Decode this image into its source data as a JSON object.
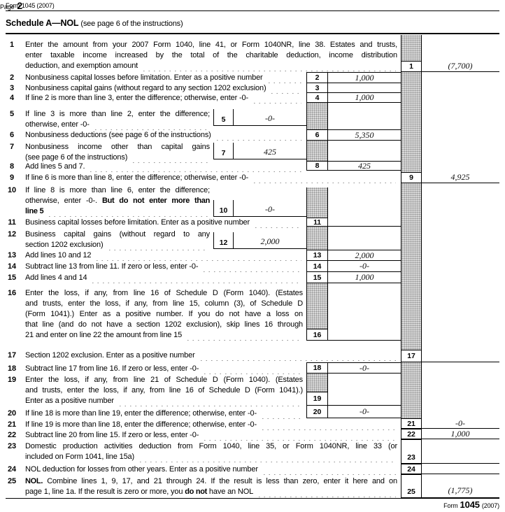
{
  "header": {
    "form_label": "Form 1045 (2007)",
    "page_label": "Page",
    "page_number": "2"
  },
  "title": {
    "schedule": "Schedule A—NOL",
    "instructions": "(see page 6 of the instructions)"
  },
  "footer": {
    "form_word": "Form",
    "form_number": "1045",
    "year": "(2007)"
  },
  "colors": {
    "hatch_bg": "#d9d9d9",
    "hatch_dot": "#929292",
    "ink": "#000000"
  },
  "lines": [
    {
      "no": "1",
      "entry_value": "(7,700)",
      "rows": [
        [
          {
            "t": "Enter the amount from your 2007 Form 1040, line 41, or Form 1040NR, line 38. Estates and trusts,"
          }
        ],
        [
          {
            "t": "enter taxable income increased by the total of the charitable deduction, income distribution"
          }
        ],
        [
          {
            "t": "deduction, and exemption amount"
          }
        ]
      ]
    },
    {
      "no": "2",
      "entry_value": "1,000",
      "rows": [
        [
          {
            "t": "Nonbusiness capital losses before limitation. Enter as a positive number"
          }
        ]
      ]
    },
    {
      "no": "3",
      "entry_value": "",
      "rows": [
        [
          {
            "t": "Nonbusiness capital gains (without regard to any section 1202 exclusion)"
          }
        ]
      ]
    },
    {
      "no": "4",
      "entry_value": "1,000",
      "rows": [
        [
          {
            "t": "If line 2 is more than line 3, enter the difference; otherwise, enter -0-"
          }
        ]
      ]
    },
    {
      "no": "5",
      "entry_value": "-0-",
      "rows": [
        [
          {
            "t": "If line 3 is more than line 2, enter the difference;"
          }
        ],
        [
          {
            "t": "otherwise, enter -0-"
          }
        ]
      ]
    },
    {
      "no": "6",
      "entry_value": "5,350",
      "rows": [
        [
          {
            "t": "Nonbusiness deductions (see page 6 of the instructions)"
          }
        ]
      ]
    },
    {
      "no": "7",
      "entry_value": "425",
      "rows": [
        [
          {
            "t": "Nonbusiness income other than capital gains"
          }
        ],
        [
          {
            "t": "(see page 6 of the instructions)"
          }
        ]
      ]
    },
    {
      "no": "8",
      "entry_value": "425",
      "rows": [
        [
          {
            "t": "Add lines 5 and 7."
          }
        ]
      ]
    },
    {
      "no": "9",
      "entry_value": "4,925",
      "rows": [
        [
          {
            "t": "If line 6 is more than line 8, enter the difference; otherwise, enter -0-"
          }
        ]
      ]
    },
    {
      "no": "10",
      "entry_value": "-0-",
      "rows": [
        [
          {
            "t": "If line 8 is more than line 6, enter the difference;"
          }
        ],
        [
          {
            "t": "otherwise, enter -0-. "
          },
          {
            "t": "But do not enter more than",
            "b": true
          }
        ],
        [
          {
            "t": "line 5",
            "b": true
          }
        ]
      ]
    },
    {
      "no": "11",
      "entry_value": "",
      "rows": [
        [
          {
            "t": "Business capital losses before limitation. Enter as a positive number"
          }
        ]
      ]
    },
    {
      "no": "12",
      "entry_value": "2,000",
      "rows": [
        [
          {
            "t": "Business capital gains (without regard to any"
          }
        ],
        [
          {
            "t": "section 1202 exclusion)"
          }
        ]
      ]
    },
    {
      "no": "13",
      "entry_value": "2,000",
      "rows": [
        [
          {
            "t": "Add lines 10 and 12"
          }
        ]
      ]
    },
    {
      "no": "14",
      "entry_value": "-0-",
      "rows": [
        [
          {
            "t": "Subtract line 13 from line 11. If zero or less, enter -0-"
          }
        ]
      ]
    },
    {
      "no": "15",
      "entry_value": "1,000",
      "rows": [
        [
          {
            "t": "Add lines 4 and 14"
          }
        ]
      ]
    },
    {
      "no": "16",
      "entry_value": "",
      "rows": [
        [
          {
            "t": "Enter the loss, if any, from line 16 of Schedule D (Form 1040). (Estates"
          }
        ],
        [
          {
            "t": "and trusts, enter the loss, if any, from line 15, column (3), of Schedule D"
          }
        ],
        [
          {
            "t": "(Form 1041).) Enter as a positive number. If you do not have a loss on"
          }
        ],
        [
          {
            "t": "that line (and do not have a section 1202 exclusion), skip lines 16 through"
          }
        ],
        [
          {
            "t": "21 and enter on line 22 the amount from line 15"
          }
        ]
      ]
    },
    {
      "no": "17",
      "entry_value": "",
      "rows": [
        [
          {
            "t": "Section 1202 exclusion. Enter as a positive number"
          }
        ]
      ]
    },
    {
      "no": "18",
      "entry_value": "-0-",
      "rows": [
        [
          {
            "t": "Subtract line 17 from line 16. If zero or less, enter -0-"
          }
        ]
      ]
    },
    {
      "no": "19",
      "entry_value": "",
      "rows": [
        [
          {
            "t": "Enter the loss, if any, from line 21 of Schedule D (Form 1040). (Estates"
          }
        ],
        [
          {
            "t": "and trusts, enter the loss, if any, from line 16 of Schedule D (Form 1041).)"
          }
        ],
        [
          {
            "t": "Enter as a positive number"
          }
        ]
      ]
    },
    {
      "no": "20",
      "entry_value": "-0-",
      "rows": [
        [
          {
            "t": "If line 18 is more than line 19, enter the difference; otherwise, enter -0-"
          }
        ]
      ]
    },
    {
      "no": "21",
      "entry_value": "-0-",
      "rows": [
        [
          {
            "t": "If line 19 is more than line 18, enter the difference; otherwise, enter -0-"
          }
        ]
      ]
    },
    {
      "no": "22",
      "entry_value": "1,000",
      "rows": [
        [
          {
            "t": "Subtract line 20 from line 15. If zero or less, enter -0-"
          }
        ]
      ]
    },
    {
      "no": "23",
      "entry_value": "",
      "rows": [
        [
          {
            "t": "Domestic production activities deduction from Form 1040, line 35, or Form 1040NR, line 33 (or"
          }
        ],
        [
          {
            "t": "included on Form 1041, line 15a)"
          }
        ]
      ]
    },
    {
      "no": "24",
      "entry_value": "",
      "rows": [
        [
          {
            "t": "NOL deduction for losses from other years. Enter as a positive number"
          }
        ]
      ]
    },
    {
      "no": "25",
      "entry_value": "(1,775)",
      "rows": [
        [
          {
            "t": "NOL.",
            "b": true
          },
          {
            "t": " Combine lines 1, 9, 17, and 21 through 24. If the result is less than zero, enter it here and on"
          }
        ],
        [
          {
            "t": "page 1, line 1a. If the result is zero or more, you "
          },
          {
            "t": "do not",
            "b": true
          },
          {
            "t": " have an NOL"
          }
        ]
      ]
    }
  ]
}
